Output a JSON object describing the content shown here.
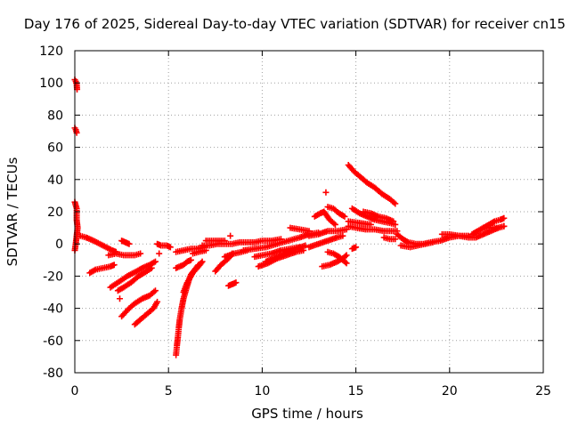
{
  "chart_data": {
    "type": "scatter",
    "title": "Day 176 of 2025, Sidereal Day-to-day VTEC variation (SDTVAR) for receiver cn15",
    "xlabel": "GPS time / hours",
    "ylabel": "SDTVAR / TECUs",
    "xlim": [
      0,
      25
    ],
    "ylim": [
      -80,
      120
    ],
    "xticks": [
      0,
      5,
      10,
      15,
      20,
      25
    ],
    "yticks": [
      -80,
      -60,
      -40,
      -20,
      0,
      20,
      40,
      60,
      80,
      100,
      120
    ],
    "grid": true,
    "marker": "+",
    "color": "#ff0000",
    "segments": [
      {
        "x": [
          0.0,
          0.05,
          0.1,
          0.12
        ],
        "y": [
          102,
          101,
          99,
          96
        ]
      },
      {
        "x": [
          0.0,
          0.05,
          0.1
        ],
        "y": [
          72,
          71,
          69
        ]
      },
      {
        "x": [
          0.0,
          0.1,
          0.1,
          0.15,
          0.1,
          0.05,
          0.0
        ],
        "y": [
          26,
          22,
          15,
          10,
          5,
          0,
          -4
        ]
      },
      {
        "x": [
          0.3,
          0.6,
          1.0,
          1.5,
          2.0,
          2.2
        ],
        "y": [
          5,
          4,
          2,
          -1,
          -4,
          -5
        ]
      },
      {
        "x": [
          0.8,
          1.1,
          1.5,
          1.9,
          2.1
        ],
        "y": [
          -18,
          -16,
          -15,
          -14,
          -13
        ]
      },
      {
        "x": [
          1.8,
          2.2,
          2.6,
          3.2,
          3.5
        ],
        "y": [
          -7,
          -6,
          -7,
          -7,
          -6
        ]
      },
      {
        "x": [
          2.5,
          2.7,
          2.9
        ],
        "y": [
          2,
          1,
          0
        ]
      },
      {
        "x": [
          1.9,
          2.3,
          2.8,
          3.3,
          3.6,
          4.0,
          4.3
        ],
        "y": [
          -27,
          -24,
          -20,
          -17,
          -15,
          -13,
          -11
        ]
      },
      {
        "x": [
          2.3,
          2.6,
          3.0,
          3.4,
          3.7,
          4.1
        ],
        "y": [
          -29,
          -27,
          -24,
          -20,
          -18,
          -15
        ]
      },
      {
        "x": [
          2.5,
          2.9,
          3.2,
          3.6,
          4.0,
          4.3
        ],
        "y": [
          -45,
          -40,
          -37,
          -34,
          -32,
          -29
        ]
      },
      {
        "x": [
          3.2,
          3.6,
          3.9,
          4.2,
          4.4
        ],
        "y": [
          -50,
          -46,
          -43,
          -40,
          -36
        ]
      },
      {
        "x": [
          2.4
        ],
        "y": [
          -34
        ]
      },
      {
        "x": [
          4.4,
          4.6,
          4.9,
          5.1
        ],
        "y": [
          0,
          -1,
          -1,
          -2
        ]
      },
      {
        "x": [
          4.5
        ],
        "y": [
          -6
        ]
      },
      {
        "x": [
          5.4,
          5.45,
          5.5,
          5.55,
          5.6,
          5.7,
          5.8,
          5.9,
          6.0,
          6.1,
          6.2,
          6.4,
          6.6
        ],
        "y": [
          -69,
          -63,
          -58,
          -52,
          -47,
          -40,
          -34,
          -30,
          -26,
          -22,
          -19,
          -16,
          -13
        ]
      },
      {
        "x": [
          5.8,
          6.0,
          6.3,
          6.6,
          6.8
        ],
        "y": [
          -30,
          -24,
          -18,
          -14,
          -11
        ]
      },
      {
        "x": [
          5.4,
          5.8,
          6.2,
          6.5,
          6.9
        ],
        "y": [
          -5,
          -4,
          -3,
          -3,
          -2
        ]
      },
      {
        "x": [
          5.4,
          5.8,
          6.0,
          6.2
        ],
        "y": [
          -15,
          -13,
          -11,
          -10
        ]
      },
      {
        "x": [
          6.3,
          6.6,
          7.0
        ],
        "y": [
          -6,
          -5,
          -4
        ]
      },
      {
        "x": [
          6.8,
          7.2,
          7.6,
          8.0,
          8.4,
          8.8,
          9.2,
          9.6,
          10.0,
          10.5,
          11.0
        ],
        "y": [
          -1,
          -1,
          0,
          0,
          0,
          1,
          1,
          1,
          2,
          2,
          3
        ]
      },
      {
        "x": [
          7.0,
          7.5,
          8.0
        ],
        "y": [
          2,
          2,
          2
        ]
      },
      {
        "x": [
          7.5,
          7.8,
          8.2,
          8.4
        ],
        "y": [
          -17,
          -13,
          -9,
          -6
        ]
      },
      {
        "x": [
          8.0,
          8.5,
          8.9,
          9.2
        ],
        "y": [
          -8,
          -6,
          -5,
          -4
        ]
      },
      {
        "x": [
          8.2,
          8.4,
          8.6
        ],
        "y": [
          -26,
          -25,
          -24
        ]
      },
      {
        "x": [
          8.3
        ],
        "y": [
          5
        ]
      },
      {
        "x": [
          9.0,
          9.6,
          10.2,
          10.8,
          11.4,
          12.0,
          12.5,
          13.0
        ],
        "y": [
          -4,
          -3,
          -2,
          0,
          2,
          4,
          6,
          7
        ]
      },
      {
        "x": [
          9.6,
          10.0,
          10.5,
          11.0,
          11.5,
          12.0
        ],
        "y": [
          -8,
          -7,
          -6,
          -4,
          -3,
          -2
        ]
      },
      {
        "x": [
          9.8,
          10.3,
          10.8,
          11.3,
          11.8,
          12.2
        ],
        "y": [
          -14,
          -12,
          -9,
          -7,
          -5,
          -4
        ]
      },
      {
        "x": [
          10.2,
          10.6,
          11.0,
          11.4,
          11.8,
          12.3
        ],
        "y": [
          -11,
          -9,
          -7,
          -5,
          -3,
          -1
        ]
      },
      {
        "x": [
          11.5,
          12.0,
          12.5
        ],
        "y": [
          10,
          9,
          8
        ]
      },
      {
        "x": [
          12.5,
          13.0,
          13.5,
          14.0,
          14.5
        ],
        "y": [
          5,
          6,
          8,
          8,
          9
        ]
      },
      {
        "x": [
          12.5,
          13.0,
          13.5,
          14.0,
          14.3
        ],
        "y": [
          -2,
          0,
          2,
          4,
          5
        ]
      },
      {
        "x": [
          13.5,
          13.8,
          14.1,
          14.3,
          14.5
        ],
        "y": [
          -5,
          -6,
          -8,
          -10,
          -12
        ]
      },
      {
        "x": [
          13.2,
          13.6,
          14.0,
          14.3,
          14.5
        ],
        "y": [
          -14,
          -13,
          -11,
          -9,
          -7
        ]
      },
      {
        "x": [
          14.8,
          15.0
        ],
        "y": [
          -3,
          -2
        ]
      },
      {
        "x": [
          12.8,
          13.1,
          13.3,
          13.6,
          13.9
        ],
        "y": [
          17,
          19,
          20,
          15,
          12
        ]
      },
      {
        "x": [
          13.5,
          13.8,
          14.1,
          14.4
        ],
        "y": [
          23,
          22,
          19,
          17
        ]
      },
      {
        "x": [
          13.4
        ],
        "y": [
          32
        ]
      },
      {
        "x": [
          14.6,
          14.9,
          15.2,
          15.6,
          16.0,
          16.4,
          16.8,
          17.1
        ],
        "y": [
          49,
          45,
          42,
          38,
          35,
          31,
          28,
          25
        ]
      },
      {
        "x": [
          14.8,
          15.2,
          15.6,
          16.0,
          16.4,
          16.8,
          17.1
        ],
        "y": [
          22,
          19,
          17,
          15,
          14,
          13,
          12
        ]
      },
      {
        "x": [
          15.4,
          15.8,
          16.2,
          16.6,
          17.0
        ],
        "y": [
          20,
          19,
          17,
          16,
          14
        ]
      },
      {
        "x": [
          14.6,
          15.0,
          15.5,
          16.0,
          16.5,
          17.0,
          17.2
        ],
        "y": [
          11,
          10,
          9,
          9,
          8,
          8,
          8
        ]
      },
      {
        "x": [
          14.6,
          15.2,
          15.8
        ],
        "y": [
          14,
          13,
          12
        ]
      },
      {
        "x": [
          16.5,
          16.8,
          17.1
        ],
        "y": [
          4,
          3,
          3
        ]
      },
      {
        "x": [
          17.2,
          17.5,
          17.8,
          18.2,
          18.6,
          19.0,
          19.5,
          20.0,
          20.5,
          21.0,
          21.4
        ],
        "y": [
          6,
          3,
          1,
          0,
          0,
          1,
          2,
          4,
          5,
          4,
          4
        ]
      },
      {
        "x": [
          17.4,
          17.9,
          18.3,
          18.7,
          19.1
        ],
        "y": [
          -1,
          -2,
          -1,
          0,
          1
        ]
      },
      {
        "x": [
          19.6,
          20.0,
          20.5,
          21.0
        ],
        "y": [
          6,
          6,
          5,
          5
        ]
      },
      {
        "x": [
          21.2,
          21.5,
          21.8,
          22.1,
          22.4,
          22.7,
          22.9
        ],
        "y": [
          6,
          8,
          10,
          12,
          14,
          15,
          16
        ]
      },
      {
        "x": [
          21.4,
          21.8,
          22.2,
          22.6,
          22.9
        ],
        "y": [
          4,
          6,
          8,
          10,
          11
        ]
      },
      {
        "x": [
          21.8,
          22.2,
          22.6,
          22.9
        ],
        "y": [
          10,
          10,
          10,
          11
        ]
      }
    ]
  }
}
